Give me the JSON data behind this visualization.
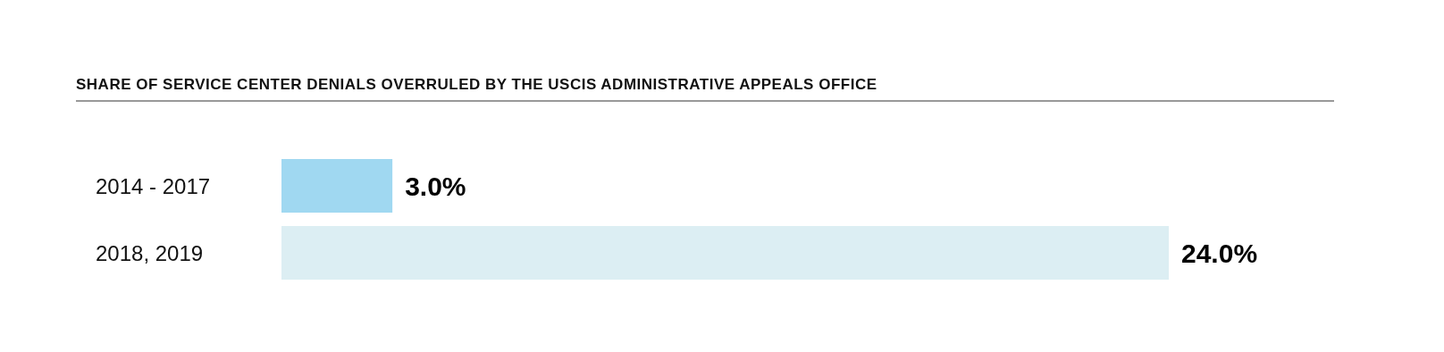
{
  "chart_data": {
    "type": "bar",
    "orientation": "horizontal",
    "title": "SHARE OF SERVICE CENTER DENIALS OVERRULED BY THE USCIS ADMINISTRATIVE APPEALS OFFICE",
    "categories": [
      "2014 - 2017",
      "2018, 2019"
    ],
    "values": [
      3.0,
      24.0
    ],
    "colors": [
      "#a0d8f1",
      "#dceef3"
    ],
    "value_labels": [
      "3.0%",
      "24.0%"
    ]
  }
}
